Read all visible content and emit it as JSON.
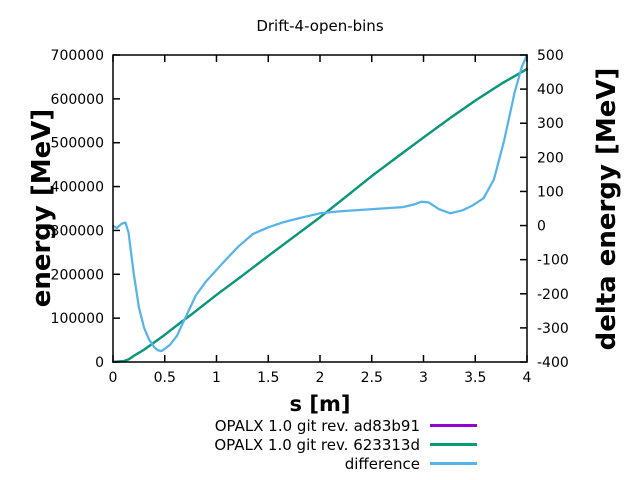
{
  "chart_data": {
    "type": "line",
    "title": "Drift-4-open-bins",
    "xlabel": "s [m]",
    "ylabel_left": "energy [MeV]",
    "ylabel_right": "delta energy [MeV]",
    "x_range": [
      0,
      4
    ],
    "x_ticks": [
      0,
      0.5,
      1,
      1.5,
      2,
      2.5,
      3,
      3.5,
      4
    ],
    "y_left_range": [
      0,
      700000
    ],
    "y_left_ticks": [
      0,
      100000,
      200000,
      300000,
      400000,
      500000,
      600000,
      700000
    ],
    "y_right_range": [
      -400,
      500
    ],
    "y_right_ticks": [
      -400,
      -300,
      -200,
      -100,
      0,
      100,
      200,
      300,
      400,
      500
    ],
    "grid": false,
    "legend_position": "below-plot",
    "border_color": "#000000",
    "series": [
      {
        "name": "OPALX 1.0 git rev. ad83b91",
        "color": "#9400d3",
        "axis": "left",
        "points": [
          [
            0,
            500
          ],
          [
            0.1,
            1500
          ],
          [
            0.15,
            6000
          ],
          [
            0.2,
            14000
          ],
          [
            0.3,
            28000
          ],
          [
            0.4,
            45000
          ],
          [
            0.5,
            62000
          ],
          [
            0.625,
            85000
          ],
          [
            0.75,
            107000
          ],
          [
            0.875,
            130000
          ],
          [
            1,
            153000
          ],
          [
            1.25,
            197000
          ],
          [
            1.5,
            242000
          ],
          [
            1.75,
            286000
          ],
          [
            2,
            330000
          ],
          [
            2.25,
            377000
          ],
          [
            2.5,
            424000
          ],
          [
            2.75,
            468000
          ],
          [
            3,
            512000
          ],
          [
            3.25,
            555000
          ],
          [
            3.5,
            596000
          ],
          [
            3.75,
            634000
          ],
          [
            4,
            668000
          ]
        ]
      },
      {
        "name": "OPALX 1.0 git rev. 623313d",
        "color": "#009e73",
        "axis": "left",
        "points": [
          [
            0,
            500
          ],
          [
            0.1,
            1500
          ],
          [
            0.15,
            6000
          ],
          [
            0.2,
            14000
          ],
          [
            0.3,
            28000
          ],
          [
            0.4,
            45000
          ],
          [
            0.5,
            62000
          ],
          [
            0.625,
            85000
          ],
          [
            0.75,
            107000
          ],
          [
            0.875,
            130000
          ],
          [
            1,
            153000
          ],
          [
            1.25,
            197000
          ],
          [
            1.5,
            242000
          ],
          [
            1.75,
            286000
          ],
          [
            2,
            330000
          ],
          [
            2.25,
            377000
          ],
          [
            2.5,
            424000
          ],
          [
            2.75,
            468000
          ],
          [
            3,
            512000
          ],
          [
            3.25,
            555000
          ],
          [
            3.5,
            596000
          ],
          [
            3.75,
            634000
          ],
          [
            4,
            668000
          ]
        ]
      },
      {
        "name": "difference",
        "color": "#56b4e9",
        "axis": "right",
        "points": [
          [
            0,
            -2
          ],
          [
            0.04,
            -7
          ],
          [
            0.08,
            5
          ],
          [
            0.12,
            9
          ],
          [
            0.15,
            -20
          ],
          [
            0.2,
            -140
          ],
          [
            0.25,
            -240
          ],
          [
            0.3,
            -300
          ],
          [
            0.35,
            -335
          ],
          [
            0.4,
            -357
          ],
          [
            0.43,
            -365
          ],
          [
            0.47,
            -368
          ],
          [
            0.55,
            -350
          ],
          [
            0.62,
            -322
          ],
          [
            0.7,
            -270
          ],
          [
            0.8,
            -205
          ],
          [
            0.9,
            -163
          ],
          [
            1,
            -130
          ],
          [
            1.1,
            -97
          ],
          [
            1.21,
            -62
          ],
          [
            1.35,
            -25
          ],
          [
            1.5,
            -5
          ],
          [
            1.65,
            10
          ],
          [
            1.8,
            22
          ],
          [
            2,
            36
          ],
          [
            2.2,
            42
          ],
          [
            2.4,
            46
          ],
          [
            2.6,
            50
          ],
          [
            2.8,
            54
          ],
          [
            2.91,
            62
          ],
          [
            2.98,
            70
          ],
          [
            3.05,
            68
          ],
          [
            3.15,
            48
          ],
          [
            3.26,
            36
          ],
          [
            3.38,
            45
          ],
          [
            3.48,
            60
          ],
          [
            3.58,
            80
          ],
          [
            3.68,
            135
          ],
          [
            3.78,
            250
          ],
          [
            3.88,
            390
          ],
          [
            3.95,
            465
          ],
          [
            4,
            500
          ]
        ]
      }
    ]
  }
}
